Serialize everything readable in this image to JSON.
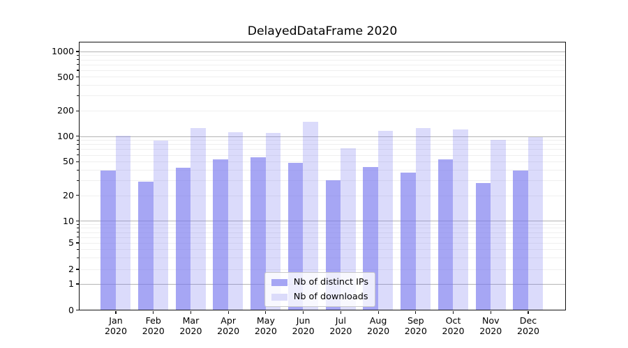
{
  "chart_data": {
    "type": "bar",
    "title": "DelayedDataFrame 2020",
    "categories": [
      "Jan 2020",
      "Feb 2020",
      "Mar 2020",
      "Apr 2020",
      "May 2020",
      "Jun 2020",
      "Jul 2020",
      "Aug 2020",
      "Sep 2020",
      "Oct 2020",
      "Nov 2020",
      "Dec 2020"
    ],
    "series": [
      {
        "name": "Nb of distinct IPs",
        "values": [
          39,
          29,
          42,
          53,
          56,
          48,
          30,
          43,
          37,
          53,
          28,
          39
        ],
        "color": "#a5a5f4",
        "fill_rgba": "rgba(115,115,238,0.64)"
      },
      {
        "name": "Nb of downloads",
        "values": [
          101,
          88,
          125,
          112,
          110,
          148,
          72,
          116,
          125,
          119,
          90,
          97
        ],
        "color": "#dbdbfa",
        "fill_rgba": "rgba(115,115,238,0.26)"
      }
    ],
    "xlabel": "",
    "ylabel": "",
    "yscale": "symlog",
    "yticks": [
      0,
      1,
      2,
      5,
      10,
      20,
      50,
      100,
      200,
      500,
      1000
    ],
    "ylim": [
      0,
      1280
    ],
    "grid": true,
    "legend_position": "lower center"
  },
  "colors": {
    "major_grid": "#b4b4b4",
    "minor_grid": "#efefef",
    "axis": "#121212",
    "text": "#000000",
    "legend_border": "#c9c9c9",
    "legend_bg": "rgba(255,255,255,0.8)"
  }
}
